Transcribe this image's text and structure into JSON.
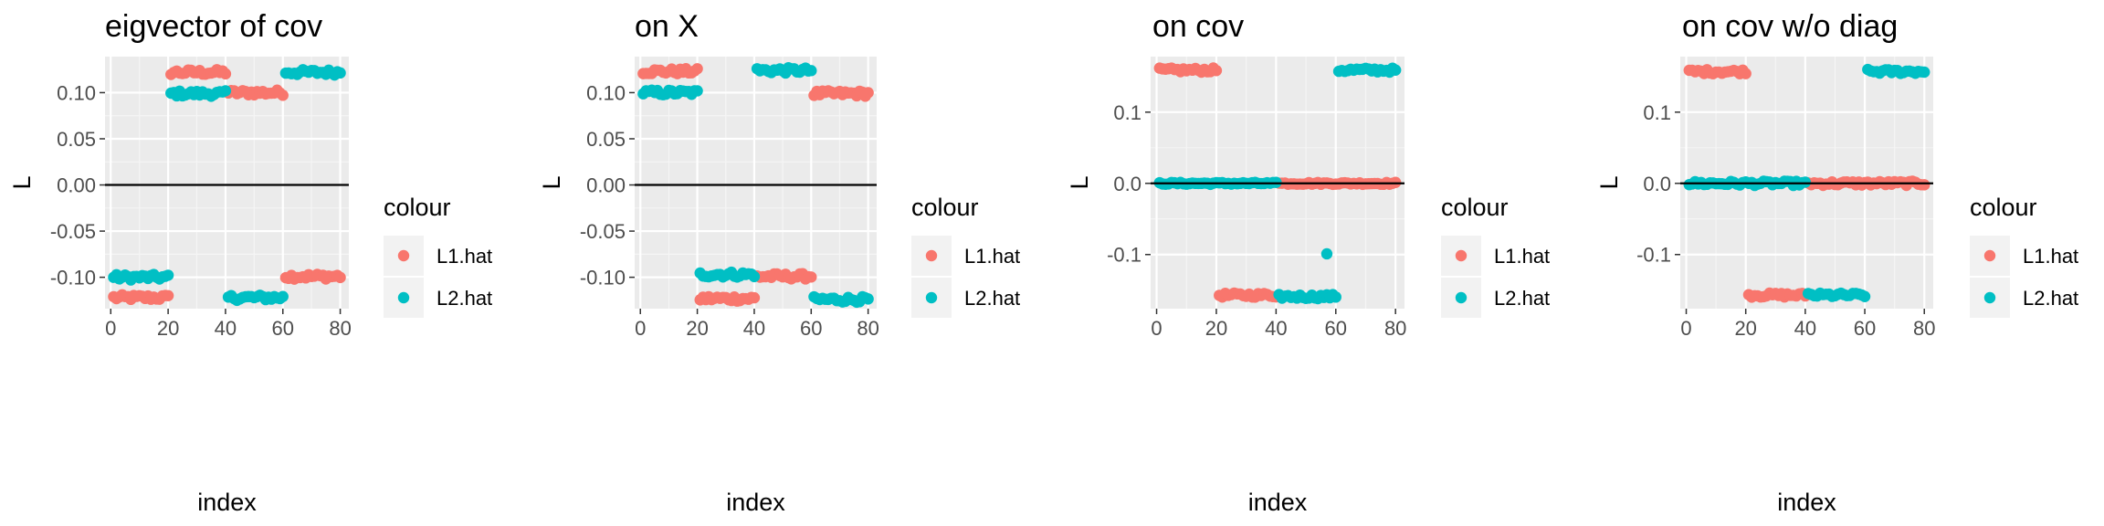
{
  "colors": {
    "panel_background": "#ebebeb",
    "grid_major": "#ffffff",
    "grid_minor": "#f5f5f5",
    "zero_line": "#000000",
    "L1.hat": "#F8766D",
    "L2.hat": "#00BFC4"
  },
  "chart_data": [
    {
      "type": "scatter",
      "title": "eigvector of cov",
      "xlabel": "index",
      "ylabel": "L",
      "xlim": [
        -2,
        83
      ],
      "ylim": [
        -0.134,
        0.139
      ],
      "xticks": [
        0,
        20,
        40,
        60,
        80
      ],
      "yticks": [
        -0.1,
        -0.05,
        0.0,
        0.05,
        0.1
      ],
      "ytick_labels": [
        "-0.10",
        "-0.05",
        "0.00",
        "0.05",
        "0.10"
      ],
      "hline": 0,
      "legend": {
        "title": "colour",
        "position": "right",
        "entries": [
          "L1.hat",
          "L2.hat"
        ]
      },
      "series": [
        {
          "name": "L1.hat",
          "segments": [
            {
              "from": 1,
              "to": 20,
              "y": -0.122,
              "spread": 0.003
            },
            {
              "from": 21,
              "to": 40,
              "y": 0.122,
              "spread": 0.003
            },
            {
              "from": 41,
              "to": 60,
              "y": 0.1,
              "spread": 0.003
            },
            {
              "from": 61,
              "to": 80,
              "y": -0.099,
              "spread": 0.003
            }
          ]
        },
        {
          "name": "L2.hat",
          "segments": [
            {
              "from": 1,
              "to": 20,
              "y": -0.1,
              "spread": 0.003
            },
            {
              "from": 21,
              "to": 40,
              "y": 0.099,
              "spread": 0.003
            },
            {
              "from": 41,
              "to": 60,
              "y": -0.122,
              "spread": 0.003
            },
            {
              "from": 61,
              "to": 80,
              "y": 0.122,
              "spread": 0.003
            }
          ]
        }
      ]
    },
    {
      "type": "scatter",
      "title": "on X",
      "xlabel": "index",
      "ylabel": "L",
      "xlim": [
        -2,
        83
      ],
      "ylim": [
        -0.134,
        0.139
      ],
      "xticks": [
        0,
        20,
        40,
        60,
        80
      ],
      "yticks": [
        -0.1,
        -0.05,
        0.0,
        0.05,
        0.1
      ],
      "ytick_labels": [
        "-0.10",
        "-0.05",
        "0.00",
        "0.05",
        "0.10"
      ],
      "hline": 0,
      "legend": {
        "title": "colour",
        "position": "right",
        "entries": [
          "L1.hat",
          "L2.hat"
        ]
      },
      "series": [
        {
          "name": "L1.hat",
          "segments": [
            {
              "from": 1,
              "to": 20,
              "y": 0.123,
              "spread": 0.003
            },
            {
              "from": 21,
              "to": 40,
              "y": -0.123,
              "spread": 0.003
            },
            {
              "from": 41,
              "to": 60,
              "y": -0.099,
              "spread": 0.003
            },
            {
              "from": 61,
              "to": 80,
              "y": 0.099,
              "spread": 0.003
            }
          ]
        },
        {
          "name": "L2.hat",
          "segments": [
            {
              "from": 1,
              "to": 20,
              "y": 0.1,
              "spread": 0.003
            },
            {
              "from": 21,
              "to": 40,
              "y": -0.097,
              "spread": 0.003
            },
            {
              "from": 41,
              "to": 60,
              "y": 0.124,
              "spread": 0.003
            },
            {
              "from": 61,
              "to": 80,
              "y": -0.124,
              "spread": 0.003
            }
          ]
        }
      ]
    },
    {
      "type": "scatter",
      "title": "on cov",
      "xlabel": "index",
      "ylabel": "L",
      "xlim": [
        -2,
        83
      ],
      "ylim": [
        -0.176,
        0.178
      ],
      "xticks": [
        0,
        20,
        40,
        60,
        80
      ],
      "yticks": [
        -0.1,
        0.0,
        0.1
      ],
      "ytick_labels": [
        "-0.1",
        "0.0",
        "0.1"
      ],
      "hline": 0,
      "legend": {
        "title": "colour",
        "position": "right",
        "entries": [
          "L1.hat",
          "L2.hat"
        ]
      },
      "series": [
        {
          "name": "L1.hat",
          "segments": [
            {
              "from": 1,
              "to": 20,
              "y": 0.159,
              "spread": 0.003
            },
            {
              "from": 21,
              "to": 40,
              "y": -0.157,
              "spread": 0.003
            },
            {
              "from": 41,
              "to": 80,
              "y": 0.0,
              "spread": 0.0015
            }
          ]
        },
        {
          "name": "L2.hat",
          "segments": [
            {
              "from": 1,
              "to": 40,
              "y": 0.0,
              "spread": 0.0015
            },
            {
              "from": 41,
              "to": 60,
              "y": -0.159,
              "spread": 0.003
            },
            {
              "from": 61,
              "to": 80,
              "y": 0.159,
              "spread": 0.003
            }
          ],
          "points": [
            {
              "x": 57,
              "y": -0.099
            }
          ]
        }
      ]
    },
    {
      "type": "scatter",
      "title": "on cov w/o diag",
      "xlabel": "index",
      "ylabel": "L",
      "xlim": [
        -2,
        83
      ],
      "ylim": [
        -0.176,
        0.178
      ],
      "xticks": [
        0,
        20,
        40,
        60,
        80
      ],
      "yticks": [
        -0.1,
        0.0,
        0.1
      ],
      "ytick_labels": [
        "-0.1",
        "0.0",
        "0.1"
      ],
      "hline": 0,
      "legend": {
        "title": "colour",
        "position": "right",
        "entries": [
          "L1.hat",
          "L2.hat"
        ]
      },
      "series": [
        {
          "name": "L1.hat",
          "segments": [
            {
              "from": 1,
              "to": 20,
              "y": 0.157,
              "spread": 0.003
            },
            {
              "from": 21,
              "to": 40,
              "y": -0.157,
              "spread": 0.003
            },
            {
              "from": 41,
              "to": 80,
              "y": 0.0,
              "spread": 0.003
            }
          ]
        },
        {
          "name": "L2.hat",
          "segments": [
            {
              "from": 1,
              "to": 40,
              "y": 0.0,
              "spread": 0.003
            },
            {
              "from": 41,
              "to": 60,
              "y": -0.157,
              "spread": 0.003
            },
            {
              "from": 61,
              "to": 80,
              "y": 0.157,
              "spread": 0.003
            }
          ]
        }
      ]
    }
  ]
}
